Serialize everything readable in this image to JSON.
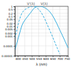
{
  "chart_data": {
    "type": "line",
    "xlabel": "λ (nm)",
    "log": "y",
    "grid": true,
    "xlim": [
      380,
      760
    ],
    "xticks": [
      400,
      450,
      500,
      550,
      600,
      650,
      700,
      750
    ],
    "ylim": [
      1e-05,
      1.0
    ],
    "yticks": [
      1e-05,
      0.0001,
      0.001,
      0.002,
      0.005,
      0.01,
      0.02,
      0.05,
      0.1,
      0.2,
      0.5,
      1
    ],
    "series": [
      {
        "name": "V'(λ)",
        "color": "#3ab0e0",
        "line_style": "dashed",
        "x": [
          380,
          390,
          400,
          410,
          420,
          430,
          440,
          450,
          460,
          470,
          480,
          490,
          500,
          510,
          520,
          530,
          540,
          550,
          560,
          570,
          580,
          590,
          600,
          610,
          620,
          630,
          640,
          650,
          660,
          670,
          680,
          690,
          700
        ],
        "values": [
          0.000589,
          0.002209,
          0.00929,
          0.03484,
          0.0961,
          0.19938,
          0.32811,
          0.45514,
          0.5672,
          0.67578,
          0.7935,
          0.9049,
          0.982,
          0.997,
          0.935,
          0.811,
          0.65,
          0.481,
          0.329,
          0.208,
          0.12,
          0.064,
          0.032,
          0.015,
          0.0072,
          0.0034,
          0.0016,
          0.00074,
          0.00034,
          0.00015,
          7e-05,
          3.2e-05,
          1.5e-05
        ]
      },
      {
        "name": "V(λ)",
        "color": "#3ab0e0",
        "line_style": "solid",
        "x": [
          380,
          390,
          400,
          410,
          420,
          430,
          440,
          450,
          460,
          470,
          480,
          490,
          500,
          510,
          520,
          530,
          540,
          550,
          560,
          570,
          580,
          590,
          600,
          610,
          620,
          630,
          640,
          650,
          660,
          670,
          680,
          690,
          700,
          710,
          720,
          730,
          740,
          750,
          760
        ],
        "values": [
          3.9e-05,
          0.00012,
          0.000396,
          0.00121,
          0.004,
          0.0116,
          0.023,
          0.038,
          0.06,
          0.09098,
          0.13902,
          0.20802,
          0.323,
          0.503,
          0.71,
          0.862,
          0.954,
          0.99495,
          0.995,
          0.952,
          0.87,
          0.757,
          0.631,
          0.503,
          0.381,
          0.265,
          0.175,
          0.107,
          0.061,
          0.032,
          0.017,
          0.00821,
          0.004102,
          0.002091,
          0.001047,
          0.00052,
          0.000249,
          0.00012,
          6e-05
        ]
      }
    ]
  }
}
